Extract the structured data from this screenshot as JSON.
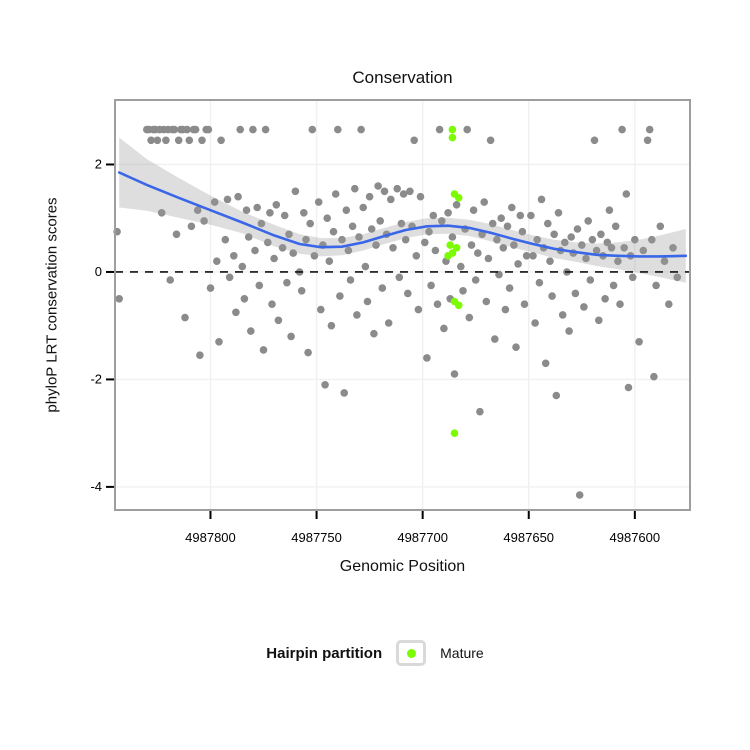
{
  "title": "Conservation",
  "legend": {
    "title": "Hairpin partition",
    "items": [
      {
        "label": "Mature",
        "color": "#7CFC00"
      }
    ]
  },
  "chart_data": {
    "type": "scatter",
    "title": "Conservation",
    "xlabel": "Genomic Position",
    "ylabel": "phyloP LRT conservation scores",
    "x_axis": {
      "reversed": true,
      "range_left": 4987845,
      "range_right": 4987574,
      "ticks": [
        4987800,
        4987750,
        4987700,
        4987650,
        4987600
      ]
    },
    "y_axis": {
      "range": [
        -4.43,
        3.2
      ],
      "ticks": [
        -4,
        -2,
        0,
        2
      ]
    },
    "reference_line_y": 0,
    "series": [
      {
        "name": "Other",
        "color": "#8b8b8b",
        "points": [
          [
            4987844,
            0.75
          ],
          [
            4987843,
            -0.5
          ],
          [
            4987830,
            2.65
          ],
          [
            4987829,
            2.65
          ],
          [
            4987828,
            2.45
          ],
          [
            4987827,
            2.65
          ],
          [
            4987826,
            2.65
          ],
          [
            4987825,
            2.45
          ],
          [
            4987824,
            2.65
          ],
          [
            4987823,
            1.1
          ],
          [
            4987822,
            2.65
          ],
          [
            4987821,
            2.45
          ],
          [
            4987820,
            2.65
          ],
          [
            4987819,
            -0.15
          ],
          [
            4987818,
            2.65
          ],
          [
            4987817,
            2.65
          ],
          [
            4987816,
            0.7
          ],
          [
            4987815,
            2.45
          ],
          [
            4987814,
            2.65
          ],
          [
            4987813,
            2.65
          ],
          [
            4987812,
            -0.85
          ],
          [
            4987811,
            2.65
          ],
          [
            4987810,
            2.45
          ],
          [
            4987809,
            0.85
          ],
          [
            4987808,
            2.65
          ],
          [
            4987807,
            2.65
          ],
          [
            4987806,
            1.15
          ],
          [
            4987805,
            -1.55
          ],
          [
            4987804,
            2.45
          ],
          [
            4987803,
            0.95
          ],
          [
            4987802,
            2.65
          ],
          [
            4987801,
            2.65
          ],
          [
            4987800,
            -0.3
          ],
          [
            4987798,
            1.3
          ],
          [
            4987797,
            0.2
          ],
          [
            4987796,
            -1.3
          ],
          [
            4987795,
            2.45
          ],
          [
            4987793,
            0.6
          ],
          [
            4987792,
            1.35
          ],
          [
            4987791,
            -0.1
          ],
          [
            4987789,
            0.3
          ],
          [
            4987788,
            -0.75
          ],
          [
            4987787,
            1.4
          ],
          [
            4987786,
            2.65
          ],
          [
            4987785,
            0.1
          ],
          [
            4987784,
            -0.5
          ],
          [
            4987783,
            1.15
          ],
          [
            4987782,
            0.65
          ],
          [
            4987781,
            -1.1
          ],
          [
            4987780,
            2.65
          ],
          [
            4987779,
            0.4
          ],
          [
            4987778,
            1.2
          ],
          [
            4987777,
            -0.25
          ],
          [
            4987776,
            0.9
          ],
          [
            4987775,
            -1.45
          ],
          [
            4987774,
            2.65
          ],
          [
            4987773,
            0.55
          ],
          [
            4987772,
            1.1
          ],
          [
            4987771,
            -0.6
          ],
          [
            4987770,
            0.25
          ],
          [
            4987769,
            1.25
          ],
          [
            4987768,
            -0.9
          ],
          [
            4987766,
            0.45
          ],
          [
            4987765,
            1.05
          ],
          [
            4987764,
            -0.2
          ],
          [
            4987763,
            0.7
          ],
          [
            4987762,
            -1.2
          ],
          [
            4987761,
            0.35
          ],
          [
            4987760,
            1.5
          ],
          [
            4987758,
            0.0
          ],
          [
            4987757,
            -0.35
          ],
          [
            4987756,
            1.1
          ],
          [
            4987755,
            0.6
          ],
          [
            4987754,
            -1.5
          ],
          [
            4987753,
            0.9
          ],
          [
            4987752,
            2.65
          ],
          [
            4987751,
            0.3
          ],
          [
            4987749,
            1.3
          ],
          [
            4987748,
            -0.7
          ],
          [
            4987747,
            0.5
          ],
          [
            4987746,
            -2.1
          ],
          [
            4987745,
            1.0
          ],
          [
            4987744,
            0.2
          ],
          [
            4987743,
            -1.0
          ],
          [
            4987742,
            0.75
          ],
          [
            4987741,
            1.45
          ],
          [
            4987740,
            2.65
          ],
          [
            4987739,
            -0.45
          ],
          [
            4987738,
            0.6
          ],
          [
            4987737,
            -2.25
          ],
          [
            4987736,
            1.15
          ],
          [
            4987735,
            0.4
          ],
          [
            4987734,
            -0.15
          ],
          [
            4987733,
            0.85
          ],
          [
            4987732,
            1.55
          ],
          [
            4987731,
            -0.8
          ],
          [
            4987730,
            0.65
          ],
          [
            4987729,
            2.65
          ],
          [
            4987728,
            1.2
          ],
          [
            4987727,
            0.1
          ],
          [
            4987726,
            -0.55
          ],
          [
            4987725,
            1.4
          ],
          [
            4987724,
            0.8
          ],
          [
            4987723,
            -1.15
          ],
          [
            4987722,
            0.5
          ],
          [
            4987721,
            1.6
          ],
          [
            4987720,
            0.95
          ],
          [
            4987719,
            -0.3
          ],
          [
            4987718,
            1.5
          ],
          [
            4987717,
            0.7
          ],
          [
            4987716,
            -0.95
          ],
          [
            4987715,
            1.35
          ],
          [
            4987714,
            0.45
          ],
          [
            4987712,
            1.55
          ],
          [
            4987711,
            -0.1
          ],
          [
            4987710,
            0.9
          ],
          [
            4987709,
            1.45
          ],
          [
            4987708,
            0.6
          ],
          [
            4987707,
            -0.4
          ],
          [
            4987706,
            1.5
          ],
          [
            4987705,
            0.85
          ],
          [
            4987704,
            2.45
          ],
          [
            4987703,
            0.3
          ],
          [
            4987702,
            -0.7
          ],
          [
            4987701,
            1.4
          ],
          [
            4987699,
            0.55
          ],
          [
            4987698,
            -1.6
          ],
          [
            4987697,
            0.75
          ],
          [
            4987696,
            -0.25
          ],
          [
            4987695,
            1.05
          ],
          [
            4987694,
            0.4
          ],
          [
            4987693,
            -0.6
          ],
          [
            4987692,
            2.65
          ],
          [
            4987691,
            0.95
          ],
          [
            4987690,
            -1.05
          ],
          [
            4987689,
            0.2
          ],
          [
            4987688,
            1.1
          ],
          [
            4987687,
            -0.5
          ],
          [
            4987686,
            0.65
          ],
          [
            4987685,
            -1.9
          ],
          [
            4987684,
            1.25
          ],
          [
            4987682,
            0.1
          ],
          [
            4987681,
            -0.35
          ],
          [
            4987680,
            0.8
          ],
          [
            4987679,
            2.65
          ],
          [
            4987678,
            -0.85
          ],
          [
            4987677,
            0.5
          ],
          [
            4987676,
            1.15
          ],
          [
            4987675,
            -0.15
          ],
          [
            4987674,
            0.35
          ],
          [
            4987673,
            -2.6
          ],
          [
            4987672,
            0.7
          ],
          [
            4987671,
            1.3
          ],
          [
            4987670,
            -0.55
          ],
          [
            4987669,
            0.25
          ],
          [
            4987668,
            2.45
          ],
          [
            4987667,
            0.9
          ],
          [
            4987666,
            -1.25
          ],
          [
            4987665,
            0.6
          ],
          [
            4987664,
            -0.05
          ],
          [
            4987663,
            1.0
          ],
          [
            4987662,
            0.45
          ],
          [
            4987661,
            -0.7
          ],
          [
            4987660,
            0.85
          ],
          [
            4987659,
            -0.3
          ],
          [
            4987658,
            1.2
          ],
          [
            4987657,
            0.5
          ],
          [
            4987656,
            -1.4
          ],
          [
            4987655,
            0.15
          ],
          [
            4987654,
            1.05
          ],
          [
            4987653,
            0.75
          ],
          [
            4987652,
            -0.6
          ],
          [
            4987651,
            0.3
          ],
          [
            4987649,
            1.05
          ],
          [
            4987648,
            0.3
          ],
          [
            4987647,
            -0.95
          ],
          [
            4987646,
            0.6
          ],
          [
            4987645,
            -0.2
          ],
          [
            4987644,
            1.35
          ],
          [
            4987643,
            0.45
          ],
          [
            4987642,
            -1.7
          ],
          [
            4987641,
            0.9
          ],
          [
            4987640,
            0.2
          ],
          [
            4987639,
            -0.45
          ],
          [
            4987638,
            0.7
          ],
          [
            4987637,
            -2.3
          ],
          [
            4987636,
            1.1
          ],
          [
            4987635,
            0.4
          ],
          [
            4987634,
            -0.8
          ],
          [
            4987633,
            0.55
          ],
          [
            4987632,
            0.0
          ],
          [
            4987631,
            -1.1
          ],
          [
            4987630,
            0.65
          ],
          [
            4987629,
            0.35
          ],
          [
            4987628,
            -0.4
          ],
          [
            4987627,
            0.8
          ],
          [
            4987626,
            -4.15
          ],
          [
            4987625,
            0.5
          ],
          [
            4987624,
            -0.65
          ],
          [
            4987623,
            0.25
          ],
          [
            4987622,
            0.95
          ],
          [
            4987621,
            -0.15
          ],
          [
            4987620,
            0.6
          ],
          [
            4987619,
            2.45
          ],
          [
            4987618,
            0.4
          ],
          [
            4987617,
            -0.9
          ],
          [
            4987616,
            0.7
          ],
          [
            4987615,
            0.3
          ],
          [
            4987614,
            -0.5
          ],
          [
            4987613,
            0.55
          ],
          [
            4987612,
            1.15
          ],
          [
            4987611,
            0.45
          ],
          [
            4987610,
            -0.25
          ],
          [
            4987609,
            0.85
          ],
          [
            4987608,
            0.2
          ],
          [
            4987607,
            -0.6
          ],
          [
            4987606,
            2.65
          ],
          [
            4987605,
            0.45
          ],
          [
            4987604,
            1.45
          ],
          [
            4987603,
            -2.15
          ],
          [
            4987602,
            0.3
          ],
          [
            4987601,
            -0.1
          ],
          [
            4987600,
            0.6
          ],
          [
            4987598,
            -1.3
          ],
          [
            4987596,
            0.4
          ],
          [
            4987594,
            2.45
          ],
          [
            4987593,
            2.65
          ],
          [
            4987592,
            0.6
          ],
          [
            4987591,
            -1.95
          ],
          [
            4987590,
            -0.25
          ],
          [
            4987588,
            0.85
          ],
          [
            4987586,
            0.2
          ],
          [
            4987584,
            -0.6
          ],
          [
            4987582,
            0.45
          ],
          [
            4987580,
            -0.1
          ]
        ]
      },
      {
        "name": "Mature",
        "color": "#7CFC00",
        "points": [
          [
            4987686,
            2.65
          ],
          [
            4987686,
            2.5
          ],
          [
            4987685,
            1.45
          ],
          [
            4987683,
            1.38
          ],
          [
            4987687,
            0.5
          ],
          [
            4987684,
            0.45
          ],
          [
            4987686,
            0.35
          ],
          [
            4987688,
            0.3
          ],
          [
            4987685,
            -0.55
          ],
          [
            4987683,
            -0.62
          ],
          [
            4987685,
            -3.0
          ]
        ]
      }
    ],
    "smooth": {
      "color": "#3A66E8",
      "x": [
        4987843,
        4987830,
        4987815,
        4987800,
        4987785,
        4987770,
        4987758,
        4987748,
        4987738,
        4987728,
        4987718,
        4987708,
        4987698,
        4987688,
        4987678,
        4987668,
        4987658,
        4987648,
        4987638,
        4987628,
        4987618,
        4987608,
        4987598,
        4987588,
        4987576
      ],
      "y": [
        1.85,
        1.62,
        1.38,
        1.15,
        0.92,
        0.68,
        0.52,
        0.46,
        0.47,
        0.55,
        0.67,
        0.78,
        0.85,
        0.86,
        0.82,
        0.73,
        0.62,
        0.52,
        0.43,
        0.37,
        0.32,
        0.3,
        0.29,
        0.29,
        0.3
      ],
      "upper": [
        2.5,
        2.1,
        1.75,
        1.42,
        1.12,
        0.88,
        0.7,
        0.63,
        0.63,
        0.7,
        0.82,
        0.93,
        1.0,
        1.01,
        0.97,
        0.89,
        0.78,
        0.68,
        0.6,
        0.55,
        0.53,
        0.55,
        0.6,
        0.68,
        0.8
      ],
      "lower": [
        1.2,
        1.14,
        1.01,
        0.88,
        0.72,
        0.48,
        0.34,
        0.29,
        0.31,
        0.4,
        0.52,
        0.63,
        0.7,
        0.71,
        0.67,
        0.57,
        0.46,
        0.36,
        0.26,
        0.19,
        0.11,
        0.05,
        -0.02,
        -0.1,
        -0.2
      ]
    }
  }
}
